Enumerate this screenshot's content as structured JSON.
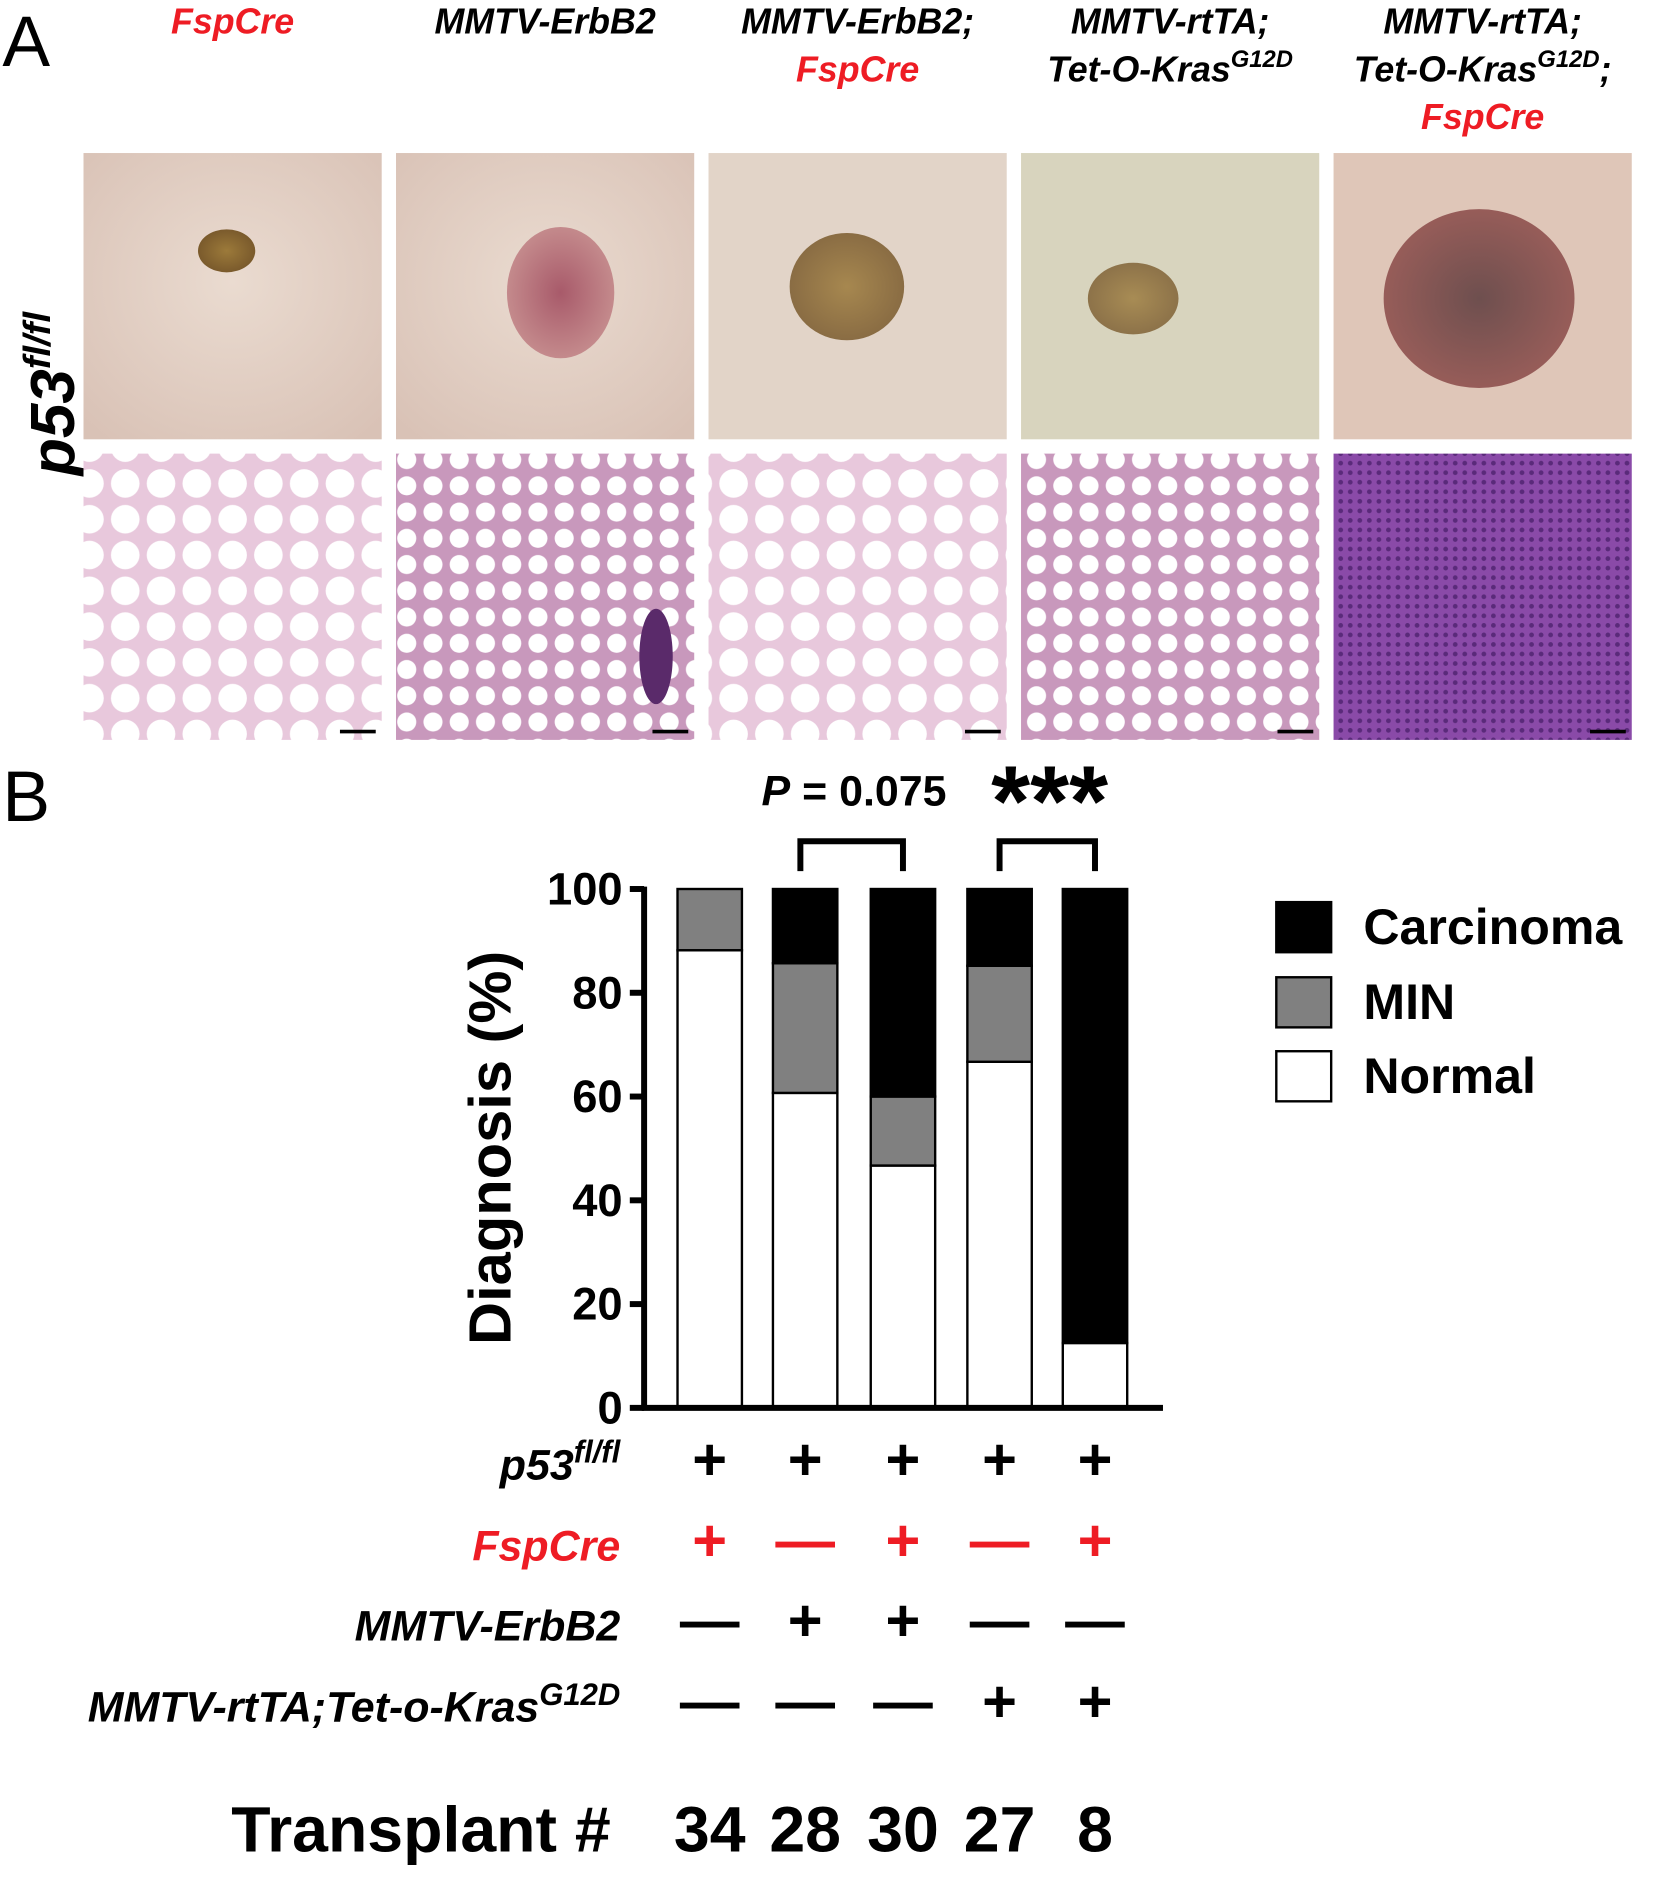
{
  "panel_a": {
    "label": "A",
    "row_label": "p53",
    "row_label_sup": "fl/fl",
    "columns": [
      {
        "lines": [
          {
            "text": "FspCre"
          }
        ]
      },
      {
        "lines": [
          {
            "text": "MMTV-ErbB2"
          }
        ]
      },
      {
        "lines": [
          {
            "text": "MMTV-ErbB2;"
          },
          {
            "text": "FspCre"
          }
        ]
      },
      {
        "lines": [
          {
            "text": "MMTV-rtTA;"
          },
          {
            "text": "Tet-O-Kras",
            "sup": "G12D"
          }
        ]
      },
      {
        "lines": [
          {
            "text": "MMTV-rtTA;"
          },
          {
            "text": "Tet-O-Kras",
            "sup": "G12D",
            "suffix": ";"
          },
          {
            "text": "FspCre"
          }
        ]
      }
    ]
  },
  "panel_b": {
    "label": "B",
    "genotype_rows": [
      {
        "label": "p53",
        "label_sup": "fl/fl",
        "values": [
          "+",
          "+",
          "+",
          "+",
          "+"
        ]
      },
      {
        "label": "FspCre",
        "values": [
          "+",
          "—",
          "+",
          "—",
          "+"
        ]
      },
      {
        "label": "MMTV-ErbB2",
        "values": [
          "—",
          "+",
          "+",
          "—",
          "—"
        ]
      },
      {
        "label": "MMTV-rtTA;Tet-o-Kras",
        "label_sup": "G12D",
        "values": [
          "—",
          "—",
          "—",
          "+",
          "+"
        ]
      }
    ],
    "transplant_label": "Transplant #",
    "transplant_counts": [
      "34",
      "28",
      "30",
      "27",
      "8"
    ]
  },
  "chart_data": {
    "type": "stacked_bar",
    "y_label": "Diagnosis (%)",
    "ylim": [
      0,
      100
    ],
    "yticks": [
      0,
      20,
      40,
      60,
      80,
      100
    ],
    "annotations": {
      "p_symbol": "P",
      "p_text": "= 0.075",
      "stars": "***"
    },
    "series": [
      {
        "name": "Normal",
        "color": "#ffffff",
        "values": [
          88.2,
          60.7,
          46.7,
          66.7,
          12.5
        ]
      },
      {
        "name": "MIN",
        "color": "#808080",
        "values": [
          11.8,
          25,
          13.3,
          18.5,
          0
        ]
      },
      {
        "name": "Carcinoma",
        "color": "#000000",
        "values": [
          0,
          14.3,
          40,
          14.8,
          87.5
        ]
      }
    ]
  }
}
